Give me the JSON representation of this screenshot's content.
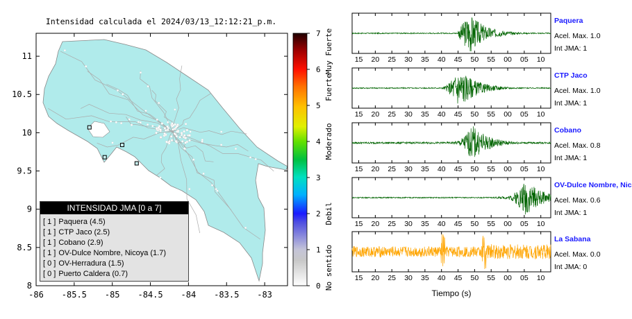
{
  "map": {
    "title": "Intensidad calculada el 2024/03/13_12:12:21_p.m.",
    "x_ticks": [
      "-86",
      "-85.5",
      "-85",
      "-84.5",
      "-84",
      "-83.5",
      "-83"
    ],
    "y_ticks": [
      "11",
      "10.5",
      "10",
      "9.5",
      "9",
      "8.5",
      "8"
    ],
    "xlim": [
      -86,
      -82.7
    ],
    "ylim": [
      8,
      11.3
    ],
    "stations": [
      {
        "lon": -85.3,
        "lat": 10.07
      },
      {
        "lon": -84.87,
        "lat": 9.84
      },
      {
        "lon": -85.1,
        "lat": 9.68
      },
      {
        "lon": -84.68,
        "lat": 9.6
      }
    ]
  },
  "legend": {
    "header": "INTENSIDAD JMA [0 a 7]",
    "items": [
      {
        "level": "[ 1 ]",
        "label": "Paquera (4.5)"
      },
      {
        "level": "[ 1 ]",
        "label": "CTP Jaco (2.5)"
      },
      {
        "level": "[ 1 ]",
        "label": "Cobano (2.9)"
      },
      {
        "level": "[ 1 ]",
        "label": "OV-Dulce Nombre, Nicoya (1.7)"
      },
      {
        "level": "[ 0 ]",
        "label": "OV-Herradura (1.5)"
      },
      {
        "level": "[ 0 ]",
        "label": "Puerto Caldera (0.7)"
      }
    ]
  },
  "colorbar": {
    "ticks": [
      "0",
      "1",
      "2",
      "3",
      "4",
      "5",
      "6",
      "7"
    ],
    "category_labels": [
      "No sentido",
      "Debil",
      "Moderado",
      "Fuerte",
      "Muy Fuerte"
    ]
  },
  "seismograms": {
    "x_ticks": [
      "15",
      "20",
      "25",
      "30",
      "35",
      "40",
      "45",
      "50",
      "55",
      "00",
      "05",
      "10"
    ],
    "xlabel": "Tiempo (s)",
    "traces": [
      {
        "name": "Paquera",
        "accel": "Acel. Max. 1.0",
        "intensity": "Int JMA: 1",
        "color": "#006400",
        "onset": 45,
        "peak": 49,
        "amp": 1.0,
        "noise": 0.03
      },
      {
        "name": "CTP Jaco",
        "accel": "Acel. Max. 1.0",
        "intensity": "Int JMA: 1",
        "color": "#006400",
        "onset": 40,
        "peak": 46,
        "amp": 1.0,
        "noise": 0.03
      },
      {
        "name": "Cobano",
        "accel": "Acel. Max. 0.8",
        "intensity": "Int JMA: 1",
        "color": "#006400",
        "onset": 37,
        "peak": 50,
        "amp": 0.85,
        "noise": 0.05
      },
      {
        "name": "OV-Dulce Nombre, Nicoya",
        "accel": "Acel. Max. 0.6",
        "intensity": "Int JMA: 1",
        "color": "#006400",
        "onset": 49,
        "peak": 66,
        "amp": 0.9,
        "noise": 0.03
      },
      {
        "name": "La Sabana",
        "accel": "Acel. Max. 0.0",
        "intensity": "Int JMA: 0",
        "color": "#ffa500",
        "onset": 13,
        "peak": 40,
        "amp": 0.35,
        "noise": 0.3
      }
    ],
    "chart_data": {
      "type": "line",
      "xlim": [
        13,
        73
      ],
      "ylim": [
        -1,
        1
      ],
      "description_series": [
        "Paquera",
        "CTP Jaco",
        "Cobano",
        "OV-Dulce Nombre, Nicoya",
        "La Sabana"
      ]
    }
  },
  "chart_data": [
    {
      "type": "scatter",
      "title": "Intensidad calculada el 2024/03/13_12:12:21_p.m.",
      "xlim": [
        -86,
        -82.7
      ],
      "ylim": [
        8,
        11.3
      ],
      "x_ticks": [
        "-86",
        "-85.5",
        "-85",
        "-84.5",
        "-84",
        "-83.5",
        "-83"
      ],
      "y_ticks": [
        "8",
        "8.5",
        "9",
        "9.5",
        "10",
        "10.5",
        "11"
      ],
      "colorbar_ticks": [
        "0",
        "1",
        "2",
        "3",
        "4",
        "5",
        "6",
        "7"
      ],
      "colorbar_labels": [
        "No sentido",
        "Debil",
        "Moderado",
        "Fuerte",
        "Muy Fuerte"
      ],
      "legend": [
        "Paquera (4.5)",
        "CTP Jaco (2.5)",
        "Cobano (2.9)",
        "OV-Dulce Nombre, Nicoya (1.7)",
        "OV-Herradura (1.5)",
        "Puerto Caldera (0.7)"
      ]
    },
    {
      "type": "line",
      "xlabel": "Tiempo (s)",
      "x_ticks": [
        "15",
        "20",
        "25",
        "30",
        "35",
        "40",
        "45",
        "50",
        "55",
        "00",
        "05",
        "10"
      ],
      "series": [
        {
          "name": "Paquera",
          "peak_accel": 1.0,
          "jma": 1
        },
        {
          "name": "CTP Jaco",
          "peak_accel": 1.0,
          "jma": 1
        },
        {
          "name": "Cobano",
          "peak_accel": 0.8,
          "jma": 1
        },
        {
          "name": "OV-Dulce Nombre, Nicoya",
          "peak_accel": 0.6,
          "jma": 1
        },
        {
          "name": "La Sabana",
          "peak_accel": 0.0,
          "jma": 0
        }
      ]
    }
  ]
}
